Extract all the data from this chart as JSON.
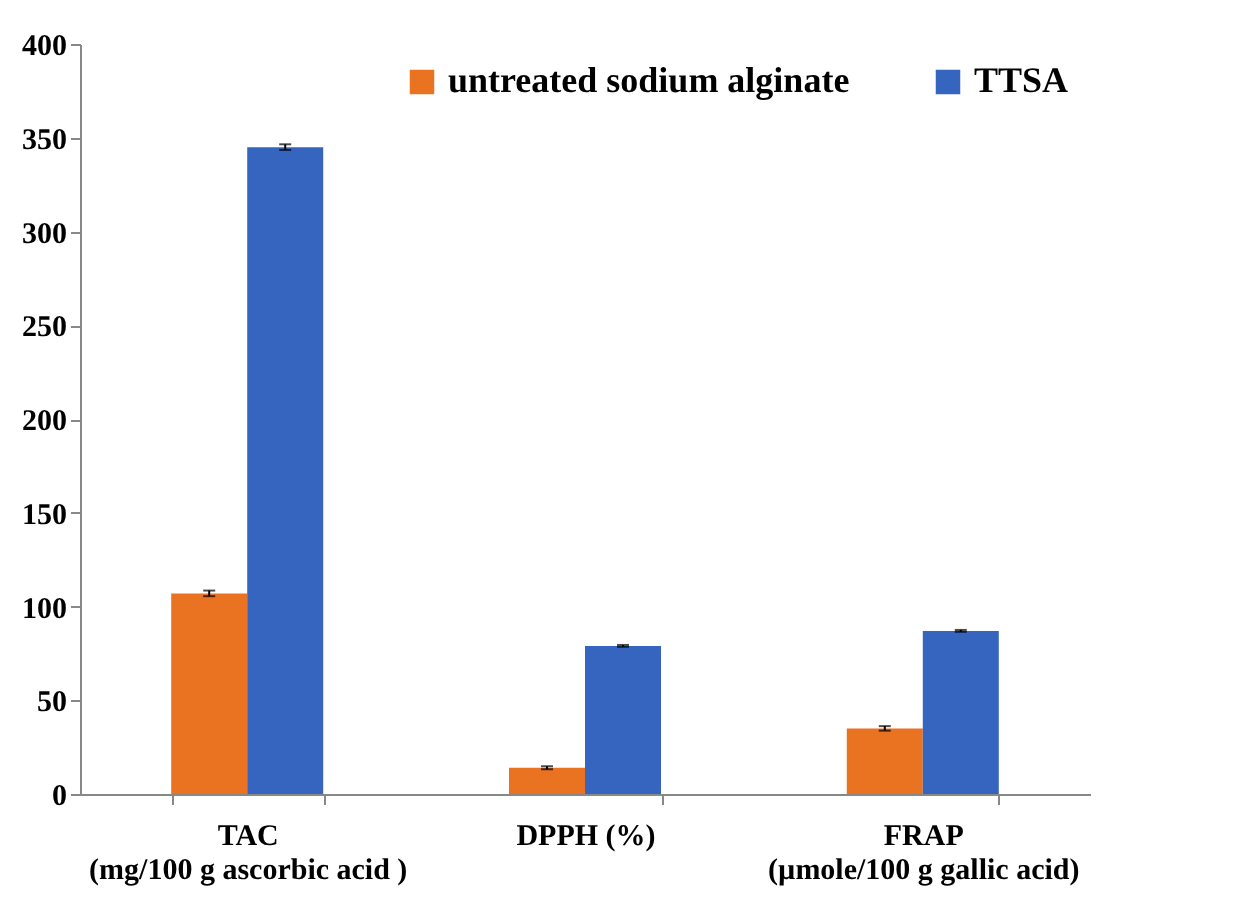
{
  "chart_data": {
    "type": "bar",
    "categories": [
      "TAC\n(mg/100 g ascorbic acid  )",
      "DPPH (%)",
      "FRAP\n(µmole/100 g gallic acid)"
    ],
    "series": [
      {
        "name": "untreated sodium alginate",
        "color": "#e97321",
        "values": [
          107,
          14,
          35
        ],
        "errors": [
          1.5,
          0.8,
          1.2
        ]
      },
      {
        "name": "TTSA",
        "color": "#3565bf",
        "values": [
          345,
          79,
          87
        ],
        "errors": [
          1.5,
          0.5,
          0.5
        ]
      }
    ],
    "ylim": [
      0,
      400
    ],
    "yticks": [
      0,
      50,
      100,
      150,
      200,
      250,
      300,
      350,
      400
    ],
    "grid": false,
    "legend": "top right"
  }
}
